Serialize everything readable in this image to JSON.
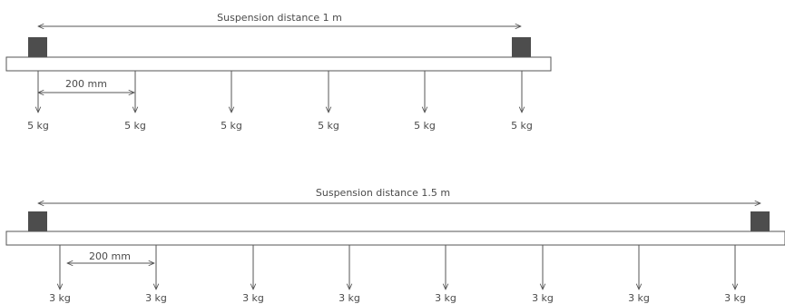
{
  "diagrams": [
    {
      "span_label": "Suspension distance 1 m",
      "spacing_label": "200 mm",
      "loads": [
        "5 kg",
        "5 kg",
        "5 kg",
        "5 kg",
        "5 kg",
        "5 kg"
      ]
    },
    {
      "span_label": "Suspension distance 1.5 m",
      "spacing_label": "200 mm",
      "loads": [
        "3 kg",
        "3 kg",
        "3 kg",
        "3 kg",
        "3 kg",
        "3 kg",
        "3 kg",
        "3 kg"
      ]
    }
  ],
  "colors": {
    "beam_fill": "#ffffff",
    "beam_stroke": "#555555",
    "support": "#4d4d4d",
    "line": "#555555",
    "text": "#4a4a4a"
  }
}
